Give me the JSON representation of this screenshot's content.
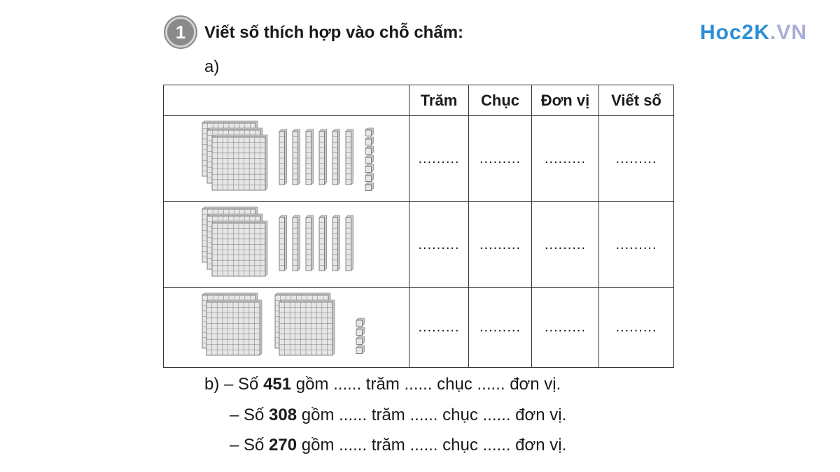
{
  "exercise": {
    "number": "1",
    "title": "Viết số thích hợp vào chỗ chấm:",
    "part_a": "a)"
  },
  "logo": {
    "main": "Hoc2K",
    "suffix": ".VN"
  },
  "table": {
    "headers": [
      "",
      "Trăm",
      "Chục",
      "Đơn vị",
      "Viết số"
    ],
    "blank": ".........",
    "rows": [
      {
        "blocks": {
          "hundreds": 3,
          "tens": 6,
          "ones": 7
        }
      },
      {
        "blocks": {
          "hundreds": 3,
          "tens": 6,
          "ones": 0
        }
      },
      {
        "blocks": {
          "hundreds": 4,
          "tens": 0,
          "ones": 4
        }
      }
    ]
  },
  "part_b": {
    "label": "b)",
    "lines": [
      {
        "prefix": "– Số ",
        "number": "451",
        "rest": " gồm ...... trăm ...... chục ...... đơn vị."
      },
      {
        "prefix": "– Số ",
        "number": "308",
        "rest": " gồm ...... trăm ...... chục ...... đơn vị."
      },
      {
        "prefix": "– Số ",
        "number": "270",
        "rest": " gồm ...... trăm ...... chục ...... đơn vị."
      }
    ]
  }
}
